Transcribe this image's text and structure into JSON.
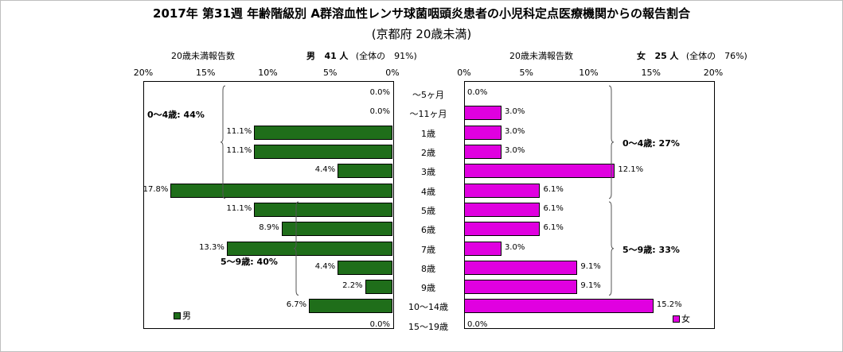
{
  "title": "2017年 第31週 年齢階級別 A群溶血性レンサ球菌咽頭炎患者の小児科定点医療機関からの報告割合",
  "subtitle": "(京都府 20歳未満)",
  "male_header": {
    "label": "20歳未満報告数",
    "sex": "男",
    "count": "41",
    "unit": "人",
    "share": "(全体の　91%)"
  },
  "female_header": {
    "label": "20歳未満報告数",
    "sex": "女",
    "count": "25",
    "unit": "人",
    "share": "(全体の　76%)"
  },
  "legend": {
    "male": "男",
    "female": "女"
  },
  "colors": {
    "male": "#1f6e1a",
    "female": "#e000e0"
  },
  "chart_data": {
    "type": "bar",
    "orientation": "horizontal",
    "layout": "population-pyramid",
    "categories": [
      "～5ヶ月",
      "～11ヶ月",
      "1歳",
      "2歳",
      "3歳",
      "4歳",
      "5歳",
      "6歳",
      "7歳",
      "8歳",
      "9歳",
      "10～14歳",
      "15～19歳"
    ],
    "xlim": [
      0,
      20
    ],
    "ticks": [
      "0%",
      "5%",
      "10%",
      "15%",
      "20%"
    ],
    "series": [
      {
        "name": "男",
        "values": [
          0.0,
          0.0,
          11.1,
          11.1,
          4.4,
          17.8,
          11.1,
          8.9,
          13.3,
          4.4,
          2.2,
          6.7,
          0.0
        ],
        "labels": [
          "0.0%",
          "0.0%",
          "11.1%",
          "11.1%",
          "4.4%",
          "17.8%",
          "11.1%",
          "8.9%",
          "13.3%",
          "4.4%",
          "2.2%",
          "6.7%",
          "0.0%"
        ]
      },
      {
        "name": "女",
        "values": [
          0.0,
          3.0,
          3.0,
          3.0,
          12.1,
          6.1,
          6.1,
          6.1,
          3.0,
          9.1,
          9.1,
          15.2,
          0.0
        ],
        "labels": [
          "0.0%",
          "3.0%",
          "3.0%",
          "3.0%",
          "12.1%",
          "6.1%",
          "6.1%",
          "6.1%",
          "3.0%",
          "9.1%",
          "9.1%",
          "15.2%",
          "0.0%"
        ]
      }
    ],
    "annotations": [
      {
        "side": "male",
        "text": "0～4歳: 44%",
        "from": 0,
        "to": 5
      },
      {
        "side": "male",
        "text": "5～9歳: 40%",
        "from": 6,
        "to": 10
      },
      {
        "side": "female",
        "text": "0～4歳: 27%",
        "from": 0,
        "to": 5
      },
      {
        "side": "female",
        "text": "5～9歳: 33%",
        "from": 6,
        "to": 10
      }
    ],
    "legend_position": "bottom-left / bottom-right"
  }
}
